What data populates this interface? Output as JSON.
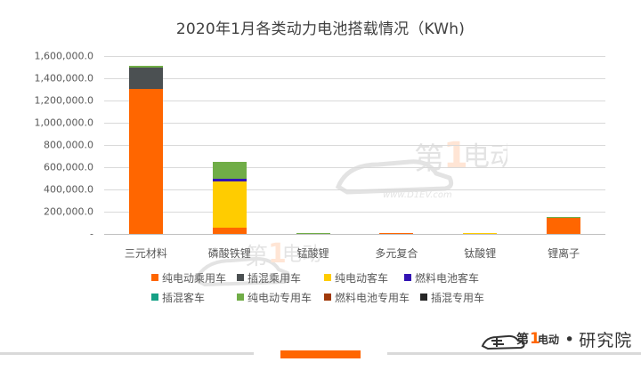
{
  "title": "2020年1月各类动力电池搭载情况（KWh)",
  "chart_data": {
    "type": "bar",
    "stacked": true,
    "title": "2020年1月各类动力电池搭载情况（KWh)",
    "xlabel": "",
    "ylabel": "",
    "unit": "KWh",
    "ylim": [
      0,
      1600000
    ],
    "grid": true,
    "legend_position": "bottom",
    "yticks": [
      "-",
      "200,000.0",
      "400,000.0",
      "600,000.0",
      "800,000.0",
      "1,000,000.0",
      "1,200,000.0",
      "1,400,000.0",
      "1,600,000.0"
    ],
    "categories": [
      "三元材料",
      "磷酸铁锂",
      "锰酸锂",
      "多元复合",
      "钛酸锂",
      "锂离子"
    ],
    "series": [
      {
        "name": "纯电动乘用车",
        "color": "#FF6600",
        "values": [
          1304000,
          56000,
          0,
          6000,
          0,
          144000
        ]
      },
      {
        "name": "插混乘用车",
        "color": "#4B5052",
        "values": [
          192000,
          0,
          0,
          0,
          0,
          0
        ]
      },
      {
        "name": "纯电动客车",
        "color": "#FFCC00",
        "values": [
          0,
          416000,
          0,
          0,
          6000,
          0
        ]
      },
      {
        "name": "燃料电池客车",
        "color": "#3314B4",
        "values": [
          0,
          24000,
          0,
          0,
          0,
          0
        ]
      },
      {
        "name": "插混客车",
        "color": "#16A085",
        "values": [
          0,
          0,
          0,
          0,
          0,
          0
        ]
      },
      {
        "name": "纯电动专用车",
        "color": "#70AD47",
        "values": [
          16000,
          152000,
          12000,
          0,
          0,
          6000
        ]
      },
      {
        "name": "燃料电池专用车",
        "color": "#A0390A",
        "values": [
          0,
          0,
          0,
          0,
          0,
          0
        ]
      },
      {
        "name": "插混专用车",
        "color": "#262626",
        "values": [
          0,
          0,
          0,
          0,
          0,
          0
        ]
      }
    ]
  },
  "legend": {
    "rows": [
      [
        {
          "label": "纯电动乘用车",
          "color": "#FF6600"
        },
        {
          "label": "插混乘用车",
          "color": "#4B5052"
        },
        {
          "label": "纯电动客车",
          "color": "#FFCC00"
        },
        {
          "label": "燃料电池客车",
          "color": "#3314B4"
        }
      ],
      [
        {
          "label": "插混客车",
          "color": "#16A085"
        },
        {
          "label": "纯电动专用车",
          "color": "#70AD47"
        },
        {
          "label": "燃料电池专用车",
          "color": "#A0390A"
        },
        {
          "label": "插混专用车",
          "color": "#262626"
        }
      ]
    ]
  },
  "watermark": {
    "brand": "第1电动",
    "url": "www.D1EV.com"
  },
  "footer": {
    "brand": "第1电动",
    "separator": "•",
    "suffix": "研究院",
    "accent_color": "#FF6600"
  }
}
